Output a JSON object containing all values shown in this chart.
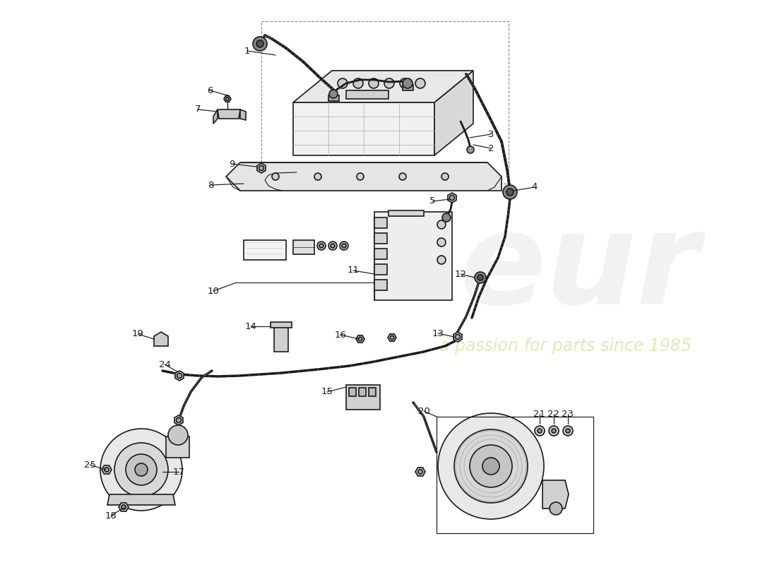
{
  "bg_color": "#ffffff",
  "lc": "#1a1a1a",
  "figsize": [
    11.0,
    8.0
  ],
  "dpi": 100,
  "watermark_eur": "eur",
  "watermark_sub": "a passion for parts since 1985"
}
